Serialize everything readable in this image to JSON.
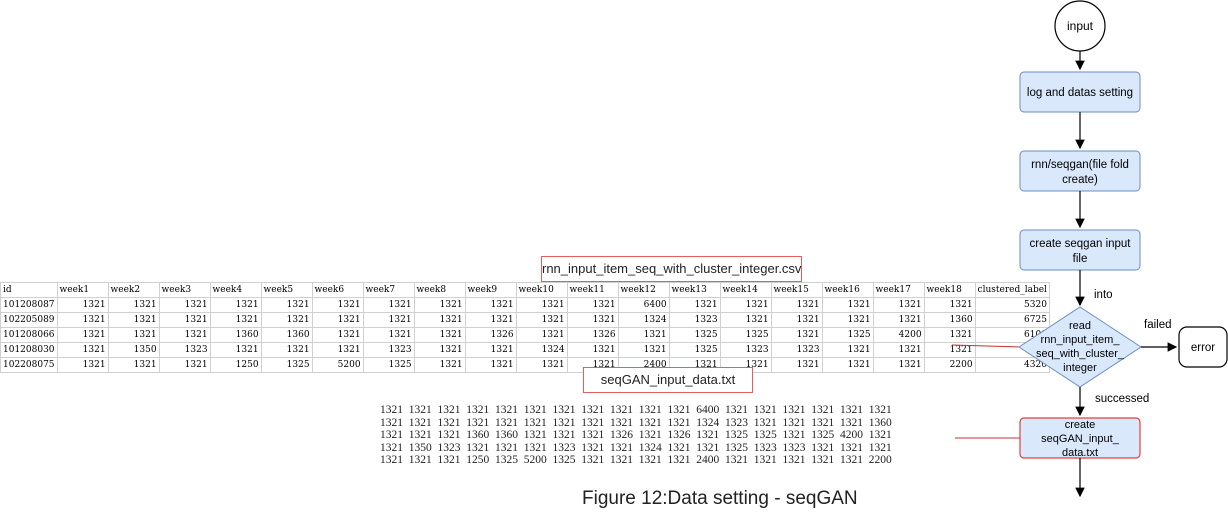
{
  "caption": "Figure 12:Data setting - seqGAN",
  "csv_label": "rnn_input_item_seq_with_cluster_integer.csv",
  "txt_label": "seqGAN_input_data.txt",
  "csv_table": {
    "headers": [
      "id",
      "week1",
      "week2",
      "week3",
      "week4",
      "week5",
      "week6",
      "week7",
      "week8",
      "week9",
      "week10",
      "week11",
      "week12",
      "week13",
      "week14",
      "week15",
      "week16",
      "week17",
      "week18",
      "clustered_label"
    ],
    "rows": [
      [
        "101208087",
        "1321",
        "1321",
        "1321",
        "1321",
        "1321",
        "1321",
        "1321",
        "1321",
        "1321",
        "1321",
        "1321",
        "6400",
        "1321",
        "1321",
        "1321",
        "1321",
        "1321",
        "1321",
        "5320"
      ],
      [
        "102205089",
        "1321",
        "1321",
        "1321",
        "1321",
        "1321",
        "1321",
        "1321",
        "1321",
        "1321",
        "1321",
        "1321",
        "1324",
        "1323",
        "1321",
        "1321",
        "1321",
        "1321",
        "1360",
        "6725"
      ],
      [
        "101208066",
        "1321",
        "1321",
        "1321",
        "1360",
        "1360",
        "1321",
        "1321",
        "1321",
        "1326",
        "1321",
        "1326",
        "1321",
        "1325",
        "1325",
        "1321",
        "1325",
        "4200",
        "1321",
        "6100"
      ],
      [
        "101208030",
        "1321",
        "1350",
        "1323",
        "1321",
        "1321",
        "1321",
        "1323",
        "1321",
        "1321",
        "1324",
        "1321",
        "1321",
        "1325",
        "1323",
        "1323",
        "1321",
        "1321",
        "1321",
        "6725"
      ],
      [
        "102208075",
        "1321",
        "1321",
        "1321",
        "1250",
        "1325",
        "5200",
        "1325",
        "1321",
        "1321",
        "1321",
        "1321",
        "2400",
        "1321",
        "1321",
        "1321",
        "1321",
        "1321",
        "2200",
        "4320"
      ]
    ]
  },
  "txt_lines": [
    "1321  1321  1321  1321  1321  1321  1321  1321  1321  1321  1321  6400  1321  1321  1321  1321  1321  1321",
    "1321  1321  1321  1321  1321  1321  1321  1321  1321  1321  1321  1324  1323  1321  1321  1321  1321  1360",
    "1321  1321  1321  1360  1360  1321  1321  1321  1326  1321  1326  1321  1325  1325  1321  1325  4200  1321",
    "1321  1350  1323  1321  1321  1321  1323  1321  1321  1324  1321  1321  1325  1323  1323  1321  1321  1321",
    "1321  1321  1321  1250  1325  5200  1325  1321  1321  1321  1321  2400  1321  1321  1321  1321  1321  2200"
  ],
  "flowchart": {
    "start": "input",
    "step1": "log and datas setting",
    "step2_line1": "rnn/seqgan(file fold",
    "step2_line2": "create)",
    "step3_line1": "create seqgan input",
    "step3_line2": "file",
    "edge_into": "into",
    "decision_line1": "read",
    "decision_line2": "rnn_input_item_",
    "decision_line3": "seq_with_cluster_",
    "decision_line4": "integer",
    "edge_failed": "failed",
    "error": "error",
    "edge_successed": "successed",
    "step4_line1": "create",
    "step4_line2": "seqGAN_input_",
    "step4_line3": "data.txt"
  },
  "colors": {
    "process_fill": "#dae8fc",
    "process_stroke": "#6c8ebf",
    "highlight_stroke": "#e04040",
    "connector": "#c83030"
  }
}
